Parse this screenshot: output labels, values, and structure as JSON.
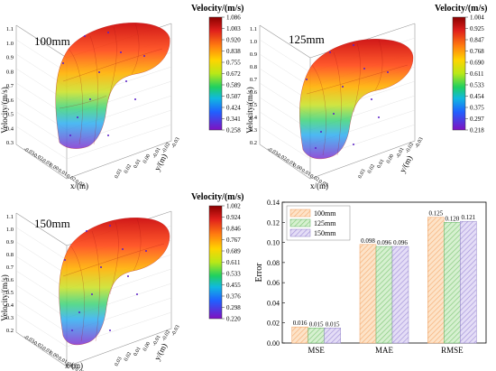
{
  "panels": [
    {
      "label": "100mm",
      "zlabel": "Velocity/(m/s)",
      "xlabel": "x/(m)",
      "ylabel": "y/(m)",
      "colorbar_title": "Velocity/(m/s)",
      "colorbar_ticks": [
        "1.086",
        "1.003",
        "0.920",
        "0.838",
        "0.755",
        "0.672",
        "0.589",
        "0.507",
        "0.424",
        "0.341",
        "0.258"
      ],
      "z_ticks": [
        "1.1",
        "1.0",
        "0.9",
        "0.8",
        "0.7",
        "0.6",
        "0.5",
        "0.4",
        "0.3"
      ],
      "x_ticks": [
        "-0.03",
        "-0.02",
        "-0.01",
        "0.00",
        "0.01",
        "0.02",
        "0.03"
      ],
      "y_ticks": [
        "0.03",
        "0.02",
        "0.01",
        "0.00",
        "-0.01",
        "-0.02",
        "-0.03"
      ]
    },
    {
      "label": "125mm",
      "zlabel": "Velocity/(m/s)",
      "xlabel": "x/(m)",
      "ylabel": "y/(m)",
      "colorbar_title": "Velocity/(m/s)",
      "colorbar_ticks": [
        "1.004",
        "0.925",
        "0.847",
        "0.768",
        "0.690",
        "0.611",
        "0.533",
        "0.454",
        "0.375",
        "0.297",
        "0.218"
      ],
      "z_ticks": [
        "1.1",
        "1.0",
        "0.9",
        "0.8",
        "0.7",
        "0.6",
        "0.5",
        "0.4",
        "0.3",
        "0.2"
      ],
      "x_ticks": [
        "-0.03",
        "-0.02",
        "-0.01",
        "0.00",
        "0.01",
        "0.02",
        "0.03"
      ],
      "y_ticks": [
        "0.03",
        "0.02",
        "0.01",
        "0.00",
        "-0.01",
        "-0.02",
        "-0.03"
      ]
    },
    {
      "label": "150mm",
      "zlabel": "Velocity/(m/s)",
      "xlabel": "x/(m)",
      "ylabel": "y/(m)",
      "colorbar_title": "Velocity/(m/s)",
      "colorbar_ticks": [
        "1.002",
        "0.924",
        "0.846",
        "0.767",
        "0.689",
        "0.611",
        "0.533",
        "0.455",
        "0.376",
        "0.298",
        "0.220"
      ],
      "z_ticks": [
        "1.1",
        "1.0",
        "0.9",
        "0.8",
        "0.7",
        "0.6",
        "0.5",
        "0.4",
        "0.3",
        "0.2"
      ],
      "x_ticks": [
        "-0.03",
        "-0.02",
        "-0.01",
        "0.00",
        "0.01",
        "0.02",
        "0.03"
      ],
      "y_ticks": [
        "0.03",
        "0.02",
        "0.01",
        "0.00",
        "-0.01",
        "-0.02",
        "-0.03"
      ]
    }
  ],
  "colors": {
    "series": [
      "#f9c89a",
      "#a8dca0",
      "#c4b8e8"
    ],
    "series_edge": [
      "#f0a060",
      "#60b060",
      "#9080c8"
    ]
  },
  "chart_data": {
    "type": "bar",
    "categories": [
      "MSE",
      "MAE",
      "RMSE"
    ],
    "ylabel": "Error",
    "ylim": [
      0,
      0.14
    ],
    "y_ticks": [
      "0.00",
      "0.02",
      "0.04",
      "0.06",
      "0.08",
      "0.10",
      "0.12",
      "0.14"
    ],
    "legend_position": "top-left",
    "series": [
      {
        "name": "100mm",
        "values": [
          0.016,
          0.098,
          0.125
        ],
        "labels": [
          "0.016",
          "0.098",
          "0.125"
        ]
      },
      {
        "name": "125mm",
        "values": [
          0.015,
          0.096,
          0.12
        ],
        "labels": [
          "0.015",
          "0.096",
          "0.120"
        ]
      },
      {
        "name": "150mm",
        "values": [
          0.015,
          0.096,
          0.121
        ],
        "labels": [
          "0.015",
          "0.096",
          "0.121"
        ]
      }
    ]
  }
}
